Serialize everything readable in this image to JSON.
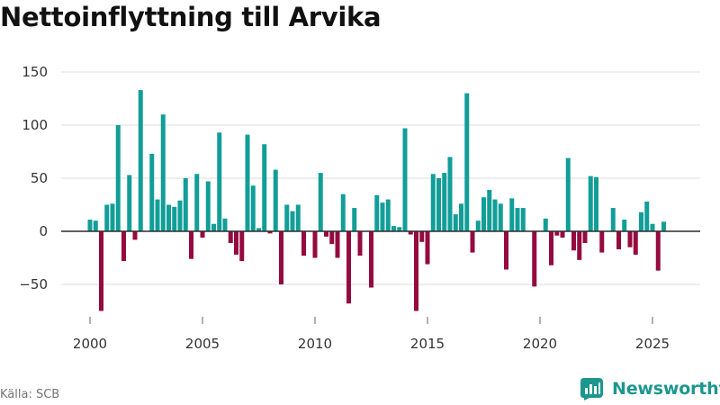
{
  "title": "Nettoinflyttning till Arvika",
  "source": "Källa: SCB",
  "brand": {
    "name": "Newsworthy",
    "icon": "newsworthy-logo-icon"
  },
  "colors": {
    "positive": "#129e98",
    "negative": "#950b3f",
    "grid": "#dcdcdc",
    "zero": "#2b2b2b"
  },
  "chart_data": {
    "type": "bar",
    "title": "Nettoinflyttning till Arvika",
    "xlabel": "",
    "ylabel": "",
    "ylim": [
      -80,
      155
    ],
    "xlim": [
      1999.5,
      2027
    ],
    "yticks": [
      -50,
      0,
      50,
      100,
      150
    ],
    "ytick_labels": [
      "−50",
      "0",
      "50",
      "100",
      "150"
    ],
    "xticks": [
      2000,
      2005,
      2010,
      2015,
      2020,
      2025
    ],
    "xtick_labels": [
      "2000",
      "2005",
      "2010",
      "2015",
      "2020",
      "2025"
    ],
    "period": "quarterly",
    "start_year": 2000,
    "series": [
      {
        "name": "Nettoinflyttning",
        "values": [
          11,
          10,
          -75,
          25,
          26,
          100,
          -28,
          53,
          -8,
          133,
          0,
          73,
          30,
          110,
          25,
          23,
          29,
          50,
          -26,
          54,
          -6,
          47,
          7,
          93,
          12,
          -11,
          -22,
          -28,
          91,
          43,
          3,
          82,
          -2,
          58,
          -50,
          25,
          19,
          25,
          -23,
          0,
          -25,
          55,
          -5,
          -12,
          -25,
          35,
          -68,
          22,
          -23,
          0,
          -53,
          34,
          27,
          30,
          5,
          4,
          97,
          -3,
          -75,
          -10,
          -31,
          54,
          50,
          55,
          70,
          16,
          26,
          130,
          -20,
          10,
          32,
          39,
          30,
          26,
          -36,
          31,
          22,
          22,
          0,
          -52,
          0,
          12,
          -32,
          -4,
          -6,
          69,
          -18,
          -27,
          -11,
          52,
          51,
          -20,
          0,
          22,
          -17,
          11,
          -15,
          -22,
          18,
          28,
          7,
          -37,
          9
        ]
      }
    ]
  }
}
